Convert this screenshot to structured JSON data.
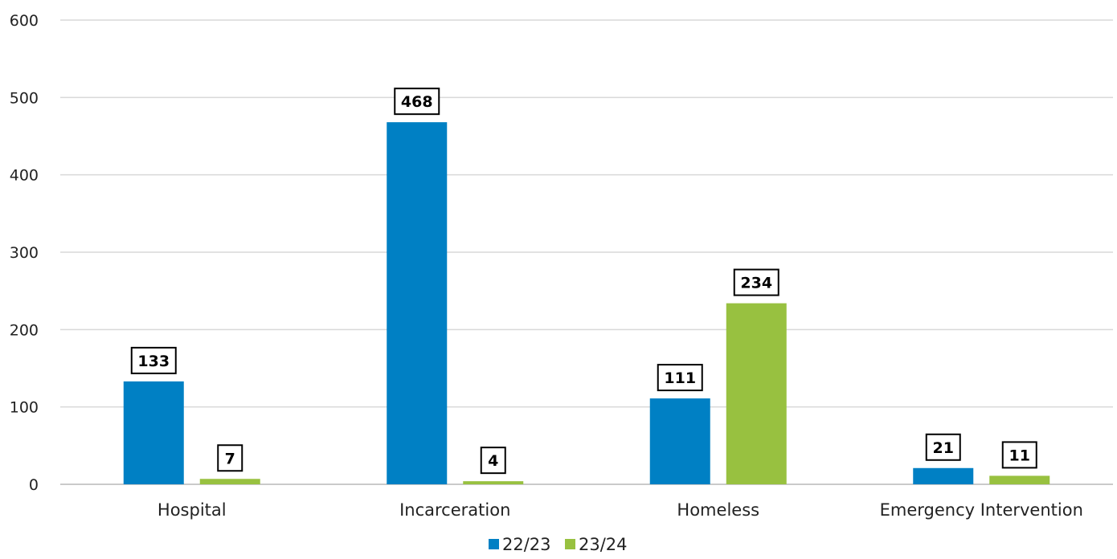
{
  "chart_data": {
    "type": "bar",
    "title": "",
    "xlabel": "",
    "ylabel": "",
    "categories": [
      "Hospital",
      "Incarceration",
      "Homeless",
      "Emergency Intervention"
    ],
    "series": [
      {
        "name": "22/23",
        "values": [
          133,
          468,
          111,
          21
        ],
        "color": "#0080C4"
      },
      {
        "name": "23/24",
        "values": [
          7,
          4,
          234,
          11
        ],
        "color": "#98C140"
      }
    ],
    "ylim": [
      0,
      600
    ],
    "yticks": [
      0,
      100,
      200,
      300,
      400,
      500,
      600
    ],
    "grid": true,
    "gridColor": "#D9D9D9",
    "legend": "bottom-center",
    "data_labels": true
  }
}
